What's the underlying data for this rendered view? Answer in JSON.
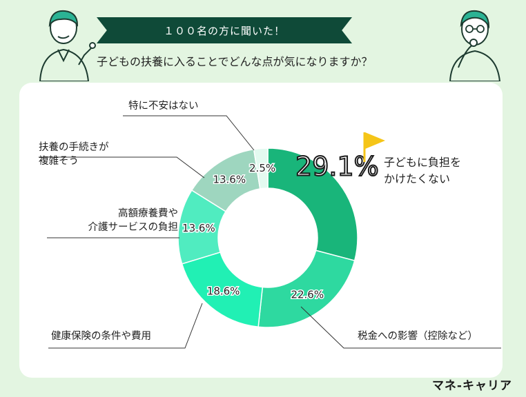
{
  "header": {
    "banner": "１００名の方に聞いた！",
    "question": "子どもの扶養に入ることでどんな点が気になりますか？"
  },
  "brand": "マネ-キャリア",
  "colors": {
    "banner_bg": "#0f4a38",
    "page_bg": "#e3f5e1",
    "flag": "#f5c518"
  },
  "chart_data": {
    "type": "pie",
    "variant": "donut",
    "title": "子どもの扶養に入ることでどんな点が気になりますか？",
    "slices": [
      {
        "label": "子どもに負担をかけたくない",
        "value": 29.1,
        "value_label": "29.1%",
        "color": "#19b57a"
      },
      {
        "label": "税金への影響（控除など）",
        "value": 22.6,
        "value_label": "22.6%",
        "color": "#2ed9a0"
      },
      {
        "label": "健康保険の条件や費用",
        "value": 18.6,
        "value_label": "18.6%",
        "color": "#21f0b4"
      },
      {
        "label": "高額療養費や介護サービスの負担",
        "value": 13.6,
        "value_label": "13.6%",
        "color": "#50ecc0"
      },
      {
        "label": "扶養の手続きが複雑そう",
        "value": 13.6,
        "value_label": "13.6%",
        "color": "#9ed6bf"
      },
      {
        "label": "特に不安はない",
        "value": 2.5,
        "value_label": "2.5%",
        "color": "#e3faf0"
      }
    ]
  },
  "labels": {
    "top": "子どもに負担を\nかけたくない",
    "tax": "税金への影響（控除など）",
    "health": "健康保険の条件や費用",
    "medical": "高額療養費や\n介護サービスの負担",
    "procedure": "扶養の手続きが\n複雑そう",
    "none": "特に不安はない"
  }
}
